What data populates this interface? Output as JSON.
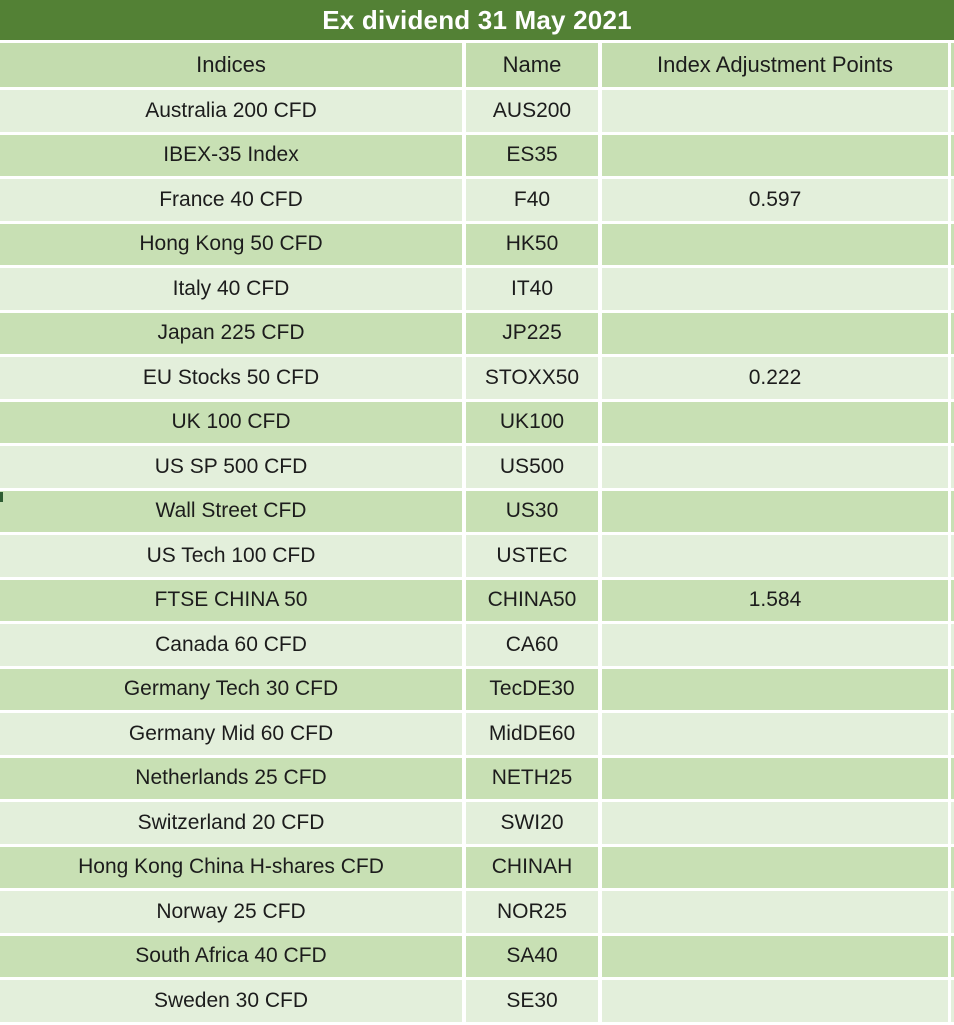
{
  "chart_data": {
    "type": "table",
    "title": "Ex dividend 31 May 2021",
    "columns": [
      "Indices",
      "Name",
      "Index Adjustment Points"
    ],
    "rows": [
      {
        "indices": "Australia 200 CFD",
        "name": "AUS200",
        "points": ""
      },
      {
        "indices": "IBEX-35 Index",
        "name": "ES35",
        "points": ""
      },
      {
        "indices": "France 40 CFD",
        "name": "F40",
        "points": "0.597"
      },
      {
        "indices": "Hong Kong 50 CFD",
        "name": "HK50",
        "points": ""
      },
      {
        "indices": "Italy 40 CFD",
        "name": "IT40",
        "points": ""
      },
      {
        "indices": "Japan 225 CFD",
        "name": "JP225",
        "points": ""
      },
      {
        "indices": "EU Stocks 50 CFD",
        "name": "STOXX50",
        "points": "0.222"
      },
      {
        "indices": "UK 100 CFD",
        "name": "UK100",
        "points": ""
      },
      {
        "indices": "US SP 500 CFD",
        "name": "US500",
        "points": ""
      },
      {
        "indices": "Wall Street CFD",
        "name": "US30",
        "points": ""
      },
      {
        "indices": "US Tech 100 CFD",
        "name": "USTEC",
        "points": ""
      },
      {
        "indices": "FTSE CHINA 50",
        "name": "CHINA50",
        "points": "1.584"
      },
      {
        "indices": "Canada 60 CFD",
        "name": "CA60",
        "points": ""
      },
      {
        "indices": "Germany Tech 30 CFD",
        "name": "TecDE30",
        "points": ""
      },
      {
        "indices": "Germany Mid 60 CFD",
        "name": "MidDE60",
        "points": ""
      },
      {
        "indices": "Netherlands 25 CFD",
        "name": "NETH25",
        "points": ""
      },
      {
        "indices": "Switzerland 20 CFD",
        "name": "SWI20",
        "points": ""
      },
      {
        "indices": "Hong Kong China H-shares CFD",
        "name": "CHINAH",
        "points": ""
      },
      {
        "indices": "Norway 25 CFD",
        "name": "NOR25",
        "points": ""
      },
      {
        "indices": "South Africa 40 CFD",
        "name": "SA40",
        "points": ""
      },
      {
        "indices": "Sweden 30 CFD",
        "name": "SE30",
        "points": ""
      }
    ],
    "layout": {
      "grid": "white separators between cells",
      "banding": "alternating light/dark green rows"
    }
  },
  "colors": {
    "title_bg": "#538135",
    "title_text": "#ffffff",
    "header_bg": "#c3dcae",
    "row_light": "#e3efdb",
    "row_dark": "#c8e0b4",
    "grid": "#ffffff",
    "text": "#1c1c1c",
    "artifact_mark": "#2f5d33"
  }
}
